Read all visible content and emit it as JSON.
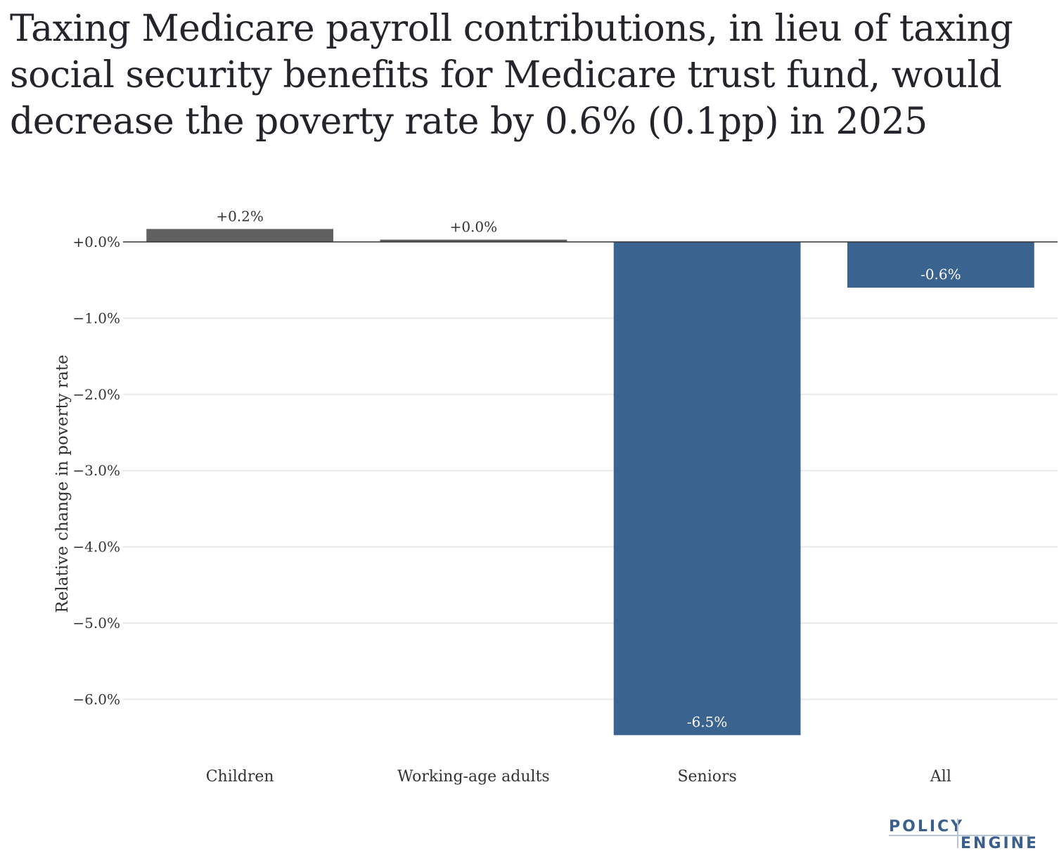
{
  "title": "Taxing Medicare payroll contributions, in lieu of taxing social security benefits for Medicare trust fund, would decrease the poverty rate by 0.6% (0.1pp) in 2025",
  "logo": {
    "line1": "POLICY",
    "line2": "ENGINE"
  },
  "colors": {
    "positive": "#616161",
    "negative": "#3b6390",
    "grid": "#e9e9e9",
    "zero_line": "#333333",
    "logo": "#3b5f8c"
  },
  "chart_data": {
    "type": "bar",
    "categories": [
      "Children",
      "Working-age adults",
      "Seniors",
      "All"
    ],
    "values": [
      0.17,
      0.03,
      -6.47,
      -0.6
    ],
    "data_labels": [
      "+0.2%",
      "+0.0%",
      "-6.5%",
      "-0.6%"
    ],
    "ylabel": "Relative change in poverty rate",
    "xlabel": "",
    "ylim": [
      -6.5,
      0.35
    ],
    "yticks": [
      0,
      -1,
      -2,
      -3,
      -4,
      -5,
      -6
    ],
    "ytick_labels": [
      "+0.0%",
      "−1.0%",
      "−2.0%",
      "−3.0%",
      "−4.0%",
      "−5.0%",
      "−6.0%"
    ],
    "grid": true,
    "legend": "none"
  }
}
